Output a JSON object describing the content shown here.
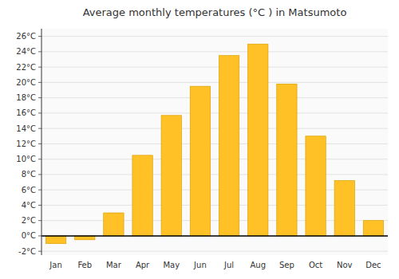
{
  "chart_data": {
    "type": "bar",
    "title": "Average monthly temperatures (°C ) in Matsumoto",
    "categories": [
      "Jan",
      "Feb",
      "Mar",
      "Apr",
      "May",
      "Jun",
      "Jul",
      "Aug",
      "Sep",
      "Oct",
      "Nov",
      "Dec"
    ],
    "values": [
      -1.0,
      -0.5,
      3.0,
      10.5,
      15.7,
      19.5,
      23.5,
      25.0,
      19.8,
      13.0,
      7.2,
      2.0
    ],
    "color": "#FFC125",
    "ylim": [
      -2.5,
      27
    ],
    "yticks": [
      {
        "value": -2,
        "label": "-2°C"
      },
      {
        "value": 0,
        "label": "0°C"
      },
      {
        "value": 2,
        "label": "2°C"
      },
      {
        "value": 4,
        "label": "4°C"
      },
      {
        "value": 6,
        "label": "6°C"
      },
      {
        "value": 8,
        "label": "8°C"
      },
      {
        "value": 10,
        "label": "10°C"
      },
      {
        "value": 12,
        "label": "12°C"
      },
      {
        "value": 14,
        "label": "14°C"
      },
      {
        "value": 16,
        "label": "16°C"
      },
      {
        "value": 18,
        "label": "18°C"
      },
      {
        "value": 20,
        "label": "20°C"
      },
      {
        "value": 22,
        "label": "22°C"
      },
      {
        "value": 24,
        "label": "24°C"
      },
      {
        "value": 26,
        "label": "26°C"
      }
    ],
    "grid": true
  }
}
